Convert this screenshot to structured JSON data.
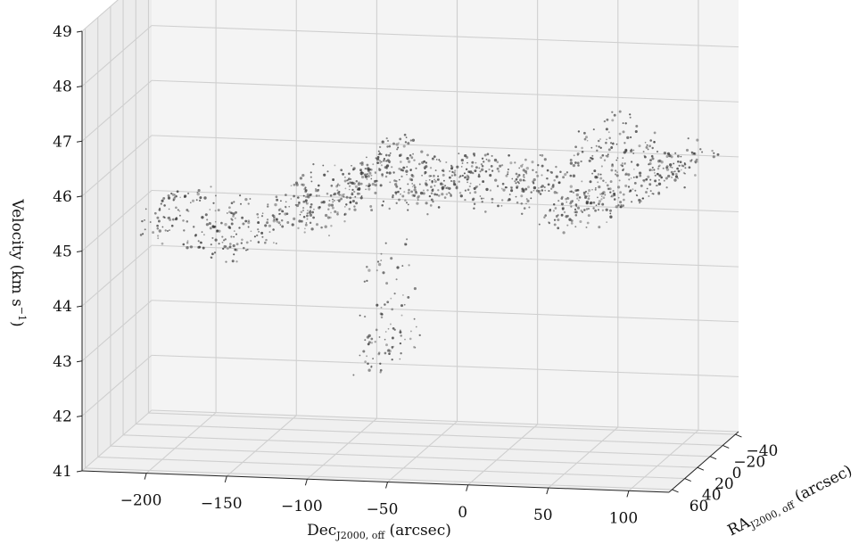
{
  "chart_data": {
    "type": "scatter",
    "projection": "3d",
    "grid": true,
    "xlabel": "Dec",
    "xlabel_sub": "J2000, off",
    "xlabel_unit": " (arcsec)",
    "ylabel": "RA",
    "ylabel_sub": "J2000, off",
    "ylabel_unit": " (arcsec)",
    "zlabel": "Velocity (km s",
    "zlabel_sup": "−1",
    "zlabel_end": ")",
    "xlim": [
      -240,
      125
    ],
    "ylim": [
      -45,
      65
    ],
    "zlim": [
      41,
      49
    ],
    "xticks": [
      -200,
      -150,
      -100,
      -50,
      0,
      50,
      100
    ],
    "xtick_labels": [
      "−200",
      "−150",
      "−100",
      "−50",
      "0",
      "50",
      "100"
    ],
    "yticks": [
      60,
      40,
      20,
      0,
      -20,
      -40
    ],
    "ytick_labels": [
      "60",
      "40",
      "20",
      "0",
      "−20",
      "−40"
    ],
    "zticks": [
      41,
      42,
      43,
      44,
      45,
      46,
      47,
      48,
      49
    ],
    "ztick_labels": [
      "41",
      "42",
      "43",
      "44",
      "45",
      "46",
      "47",
      "48",
      "49"
    ],
    "structures": [
      {
        "dec": -205,
        "vel": 45.2,
        "count": 70
      },
      {
        "dec": -180,
        "vel": 45.0,
        "count": 60
      },
      {
        "dec": -165,
        "vel": 44.8,
        "count": 50
      },
      {
        "dec": -140,
        "vel": 45.1,
        "count": 60
      },
      {
        "dec": -120,
        "vel": 45.7,
        "count": 60
      },
      {
        "dec": -105,
        "vel": 45.4,
        "count": 60
      },
      {
        "dec": -90,
        "vel": 45.9,
        "count": 70
      },
      {
        "dec": -75,
        "vel": 46.2,
        "count": 80
      },
      {
        "dec": -60,
        "vel": 45.9,
        "count": 70
      },
      {
        "dec": -45,
        "vel": 45.8,
        "count": 60
      },
      {
        "dec": -30,
        "vel": 46.0,
        "count": 60
      },
      {
        "dec": -15,
        "vel": 46.0,
        "count": 50
      },
      {
        "dec": 0,
        "vel": 45.9,
        "count": 40
      },
      {
        "dec": 15,
        "vel": 46.0,
        "count": 50
      },
      {
        "dec": 30,
        "vel": 45.9,
        "count": 40
      },
      {
        "dec": 45,
        "vel": 45.7,
        "count": 70
      },
      {
        "dec": 60,
        "vel": 45.6,
        "count": 60
      },
      {
        "dec": 60,
        "vel": 46.8,
        "count": 50
      },
      {
        "dec": 75,
        "vel": 46.5,
        "count": 60
      },
      {
        "dec": 90,
        "vel": 46.1,
        "count": 60
      },
      {
        "dec": 100,
        "vel": 46.3,
        "count": 40
      },
      {
        "dec": 115,
        "vel": 46.4,
        "count": 40
      },
      {
        "dec": -70,
        "vel": 44.5,
        "count": 20
      },
      {
        "dec": -75,
        "vel": 43.5,
        "count": 25
      },
      {
        "dec": -70,
        "vel": 42.9,
        "count": 50
      }
    ]
  }
}
